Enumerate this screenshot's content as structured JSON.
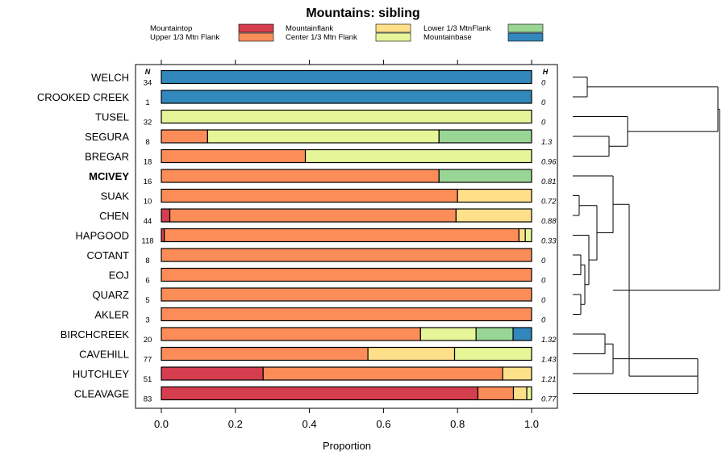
{
  "chart_data": {
    "type": "bar",
    "stacked": true,
    "orientation": "horizontal",
    "title": "Mountains: sibling",
    "xlabel": "Proportion",
    "xlim": [
      -0.05,
      1.05
    ],
    "xticks": [
      "0.0",
      "0.2",
      "0.4",
      "0.6",
      "0.8",
      "1.0"
    ],
    "n_header": "N",
    "h_header": "H",
    "legend": [
      {
        "label": "Mountaintop",
        "color": "#d53e4f"
      },
      {
        "label": "Upper 1/3 Mtn Flank",
        "color": "#fc8d59"
      },
      {
        "label": "Mountainflank",
        "color": "#fee08b"
      },
      {
        "label": "Center 1/3 Mtn Flank",
        "color": "#e6f598"
      },
      {
        "label": "Lower 1/3 MtnFlank",
        "color": "#99d594"
      },
      {
        "label": "Mountainbase",
        "color": "#3288bd"
      }
    ],
    "rows": [
      {
        "name": "WELCH",
        "bold": false,
        "n": "34",
        "h": "0",
        "values": [
          0,
          0,
          0,
          0,
          0,
          1.0
        ]
      },
      {
        "name": "CROOKED CREEK",
        "bold": false,
        "n": "1",
        "h": "0",
        "values": [
          0,
          0,
          0,
          0,
          0,
          1.0
        ]
      },
      {
        "name": "TUSEL",
        "bold": false,
        "n": "32",
        "h": "0",
        "values": [
          0,
          0,
          0,
          1.0,
          0,
          0
        ]
      },
      {
        "name": "SEGURA",
        "bold": false,
        "n": "8",
        "h": "1.3",
        "values": [
          0,
          0.125,
          0,
          0.625,
          0.25,
          0
        ]
      },
      {
        "name": "BREGAR",
        "bold": false,
        "n": "18",
        "h": "0.96",
        "values": [
          0,
          0.389,
          0,
          0.611,
          0,
          0
        ]
      },
      {
        "name": "MCIVEY",
        "bold": true,
        "n": "16",
        "h": "0.81",
        "values": [
          0,
          0.75,
          0,
          0,
          0.25,
          0
        ]
      },
      {
        "name": "SUAK",
        "bold": false,
        "n": "10",
        "h": "0.72",
        "values": [
          0,
          0.8,
          0.2,
          0,
          0,
          0
        ]
      },
      {
        "name": "CHEN",
        "bold": false,
        "n": "44",
        "h": "0.88",
        "values": [
          0.023,
          0.773,
          0.204,
          0,
          0,
          0
        ]
      },
      {
        "name": "HAPGOOD",
        "bold": false,
        "n": "118",
        "h": "0.33",
        "values": [
          0.008,
          0.958,
          0.017,
          0.017,
          0,
          0
        ]
      },
      {
        "name": "COTANT",
        "bold": false,
        "n": "8",
        "h": "0",
        "values": [
          0,
          1.0,
          0,
          0,
          0,
          0
        ]
      },
      {
        "name": "EOJ",
        "bold": false,
        "n": "6",
        "h": "0",
        "values": [
          0,
          1.0,
          0,
          0,
          0,
          0
        ]
      },
      {
        "name": "QUARZ",
        "bold": false,
        "n": "5",
        "h": "0",
        "values": [
          0,
          1.0,
          0,
          0,
          0,
          0
        ]
      },
      {
        "name": "AKLER",
        "bold": false,
        "n": "3",
        "h": "0",
        "values": [
          0,
          1.0,
          0,
          0,
          0,
          0
        ]
      },
      {
        "name": "BIRCHCREEK",
        "bold": false,
        "n": "20",
        "h": "1.32",
        "values": [
          0,
          0.7,
          0,
          0.15,
          0.1,
          0.05
        ]
      },
      {
        "name": "CAVEHILL",
        "bold": false,
        "n": "77",
        "h": "1.43",
        "values": [
          0,
          0.558,
          0.234,
          0.208,
          0,
          0
        ]
      },
      {
        "name": "HUTCHLEY",
        "bold": false,
        "n": "51",
        "h": "1.21",
        "values": [
          0.275,
          0.647,
          0.078,
          0,
          0,
          0
        ]
      },
      {
        "name": "CLEAVAGE",
        "bold": false,
        "n": "83",
        "h": "0.77",
        "values": [
          0.855,
          0.096,
          0.036,
          0.013,
          0,
          0
        ]
      }
    ]
  }
}
